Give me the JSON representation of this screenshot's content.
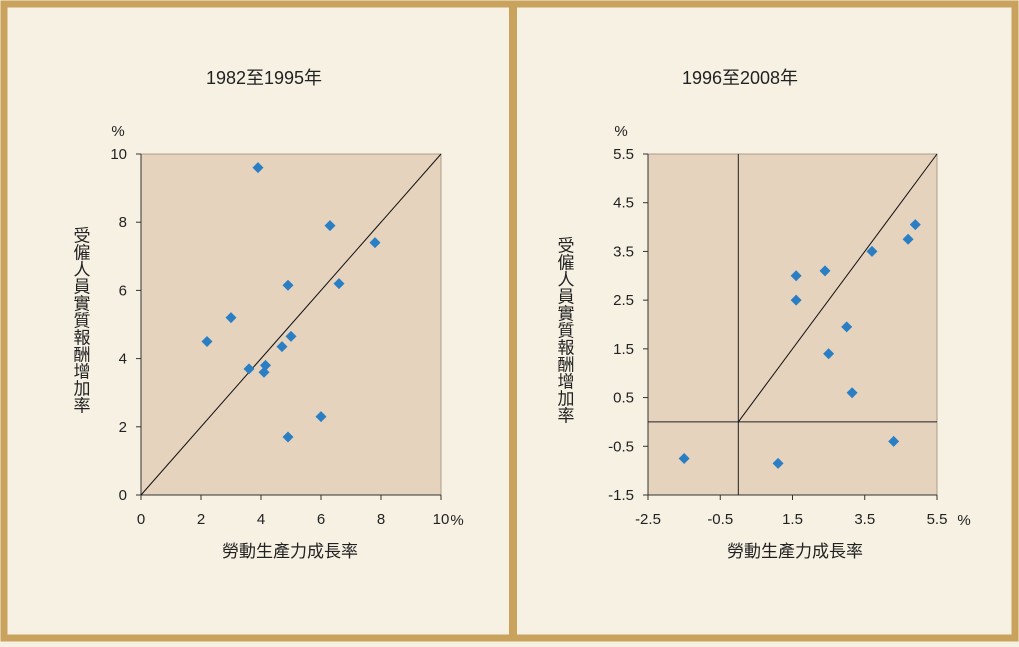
{
  "colors": {
    "frame": "#c9a35e",
    "background": "#f6f1e3",
    "plot_area": "#e6d3be",
    "marker": "#2a7fc4",
    "line": "#111111"
  },
  "marker_shape": "diamond",
  "chart_data": [
    {
      "type": "scatter",
      "title": "1982至1995年",
      "xlabel": "勞動生產力成長率",
      "ylabel": "受僱人員實質報酬增加率",
      "x_unit": "%",
      "y_unit": "%",
      "xlim": [
        0,
        10
      ],
      "ylim": [
        0,
        10
      ],
      "x_ticks": [
        0,
        2,
        4,
        6,
        8,
        10
      ],
      "x_tick_labels": [
        "0",
        "2",
        "4",
        "6",
        "8",
        "10"
      ],
      "y_ticks": [
        0,
        2,
        4,
        6,
        8,
        10
      ],
      "y_tick_labels": [
        "0",
        "2",
        "4",
        "6",
        "8",
        "10"
      ],
      "reference_line": {
        "from": [
          0,
          0
        ],
        "to": [
          10,
          10
        ]
      },
      "grid": false,
      "points": [
        {
          "x": 2.2,
          "y": 4.5
        },
        {
          "x": 3.0,
          "y": 5.2
        },
        {
          "x": 3.6,
          "y": 3.7
        },
        {
          "x": 3.9,
          "y": 9.6
        },
        {
          "x": 4.1,
          "y": 3.6
        },
        {
          "x": 4.15,
          "y": 3.8
        },
        {
          "x": 4.7,
          "y": 4.35
        },
        {
          "x": 4.9,
          "y": 6.15
        },
        {
          "x": 5.0,
          "y": 4.65
        },
        {
          "x": 4.9,
          "y": 1.7
        },
        {
          "x": 6.0,
          "y": 2.3
        },
        {
          "x": 6.3,
          "y": 7.9
        },
        {
          "x": 6.6,
          "y": 6.2
        },
        {
          "x": 7.8,
          "y": 7.4
        }
      ]
    },
    {
      "type": "scatter",
      "title": "1996至2008年",
      "xlabel": "勞動生產力成長率",
      "ylabel": "受僱人員實質報酬增加率",
      "x_unit": "%",
      "y_unit": "%",
      "xlim": [
        -2.5,
        5.5
      ],
      "ylim": [
        -1.5,
        5.5
      ],
      "x_ticks": [
        -2.5,
        -0.5,
        1.5,
        3.5,
        5.5
      ],
      "x_tick_labels": [
        "-2.5",
        "-0.5",
        "1.5",
        "3.5",
        "5.5"
      ],
      "y_ticks": [
        -1.5,
        -0.5,
        0.5,
        1.5,
        2.5,
        3.5,
        4.5,
        5.5
      ],
      "y_tick_labels": [
        "-1.5",
        "-0.5",
        "0.5",
        "1.5",
        "2.5",
        "3.5",
        "4.5",
        "5.5"
      ],
      "zero_axes": true,
      "reference_line": {
        "from": [
          0,
          0
        ],
        "to": [
          5.5,
          5.5
        ]
      },
      "grid": false,
      "points": [
        {
          "x": -1.5,
          "y": -0.75
        },
        {
          "x": 1.1,
          "y": -0.85
        },
        {
          "x": 1.6,
          "y": 3.0
        },
        {
          "x": 1.6,
          "y": 2.5
        },
        {
          "x": 2.4,
          "y": 3.1
        },
        {
          "x": 2.5,
          "y": 1.4
        },
        {
          "x": 3.0,
          "y": 1.95
        },
        {
          "x": 3.15,
          "y": 0.6
        },
        {
          "x": 3.7,
          "y": 3.5
        },
        {
          "x": 4.3,
          "y": -0.4
        },
        {
          "x": 4.7,
          "y": 3.75
        },
        {
          "x": 4.9,
          "y": 4.05
        }
      ]
    }
  ]
}
